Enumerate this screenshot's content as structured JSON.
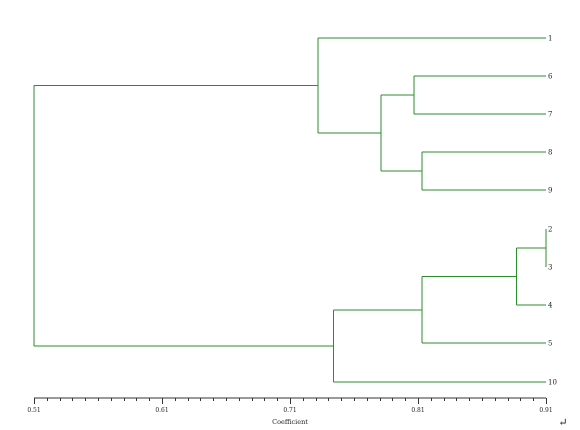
{
  "chart_data": {
    "type": "dendrogram",
    "orientation": "horizontal",
    "xlabel": "Coefficient",
    "xlim": [
      0.51,
      0.91
    ],
    "ticks": [
      {
        "value": 0.51,
        "label": "0.51"
      },
      {
        "value": 0.61,
        "label": "0.61"
      },
      {
        "value": 0.71,
        "label": "0.71"
      },
      {
        "value": 0.81,
        "label": "0.81"
      },
      {
        "value": 0.91,
        "label": "0.91"
      }
    ],
    "leaves": [
      "1",
      "6",
      "7",
      "8",
      "9",
      "2",
      "3",
      "4",
      "5",
      "10"
    ],
    "merges": [
      {
        "id": "m23",
        "left": "2",
        "right": "3",
        "coefficient": 0.91
      },
      {
        "id": "m234",
        "left": "m23",
        "right": "4",
        "coefficient": 0.887
      },
      {
        "id": "m67",
        "left": "6",
        "right": "7",
        "coefficient": 0.807
      },
      {
        "id": "m89",
        "left": "8",
        "right": "9",
        "coefficient": 0.813
      },
      {
        "id": "m2345",
        "left": "m234",
        "right": "5",
        "coefficient": 0.813
      },
      {
        "id": "m6789",
        "left": "m67",
        "right": "m89",
        "coefficient": 0.781
      },
      {
        "id": "m16789",
        "left": "1",
        "right": "m6789",
        "coefficient": 0.732
      },
      {
        "id": "m234510",
        "left": "m2345",
        "right": "10",
        "coefficient": 0.744
      },
      {
        "id": "root",
        "left": "m16789",
        "right": "m234510",
        "coefficient": 0.51
      }
    ],
    "colors": {
      "tree": "#2e8b2e",
      "axis": "#333333"
    }
  },
  "return_mark": "↵"
}
